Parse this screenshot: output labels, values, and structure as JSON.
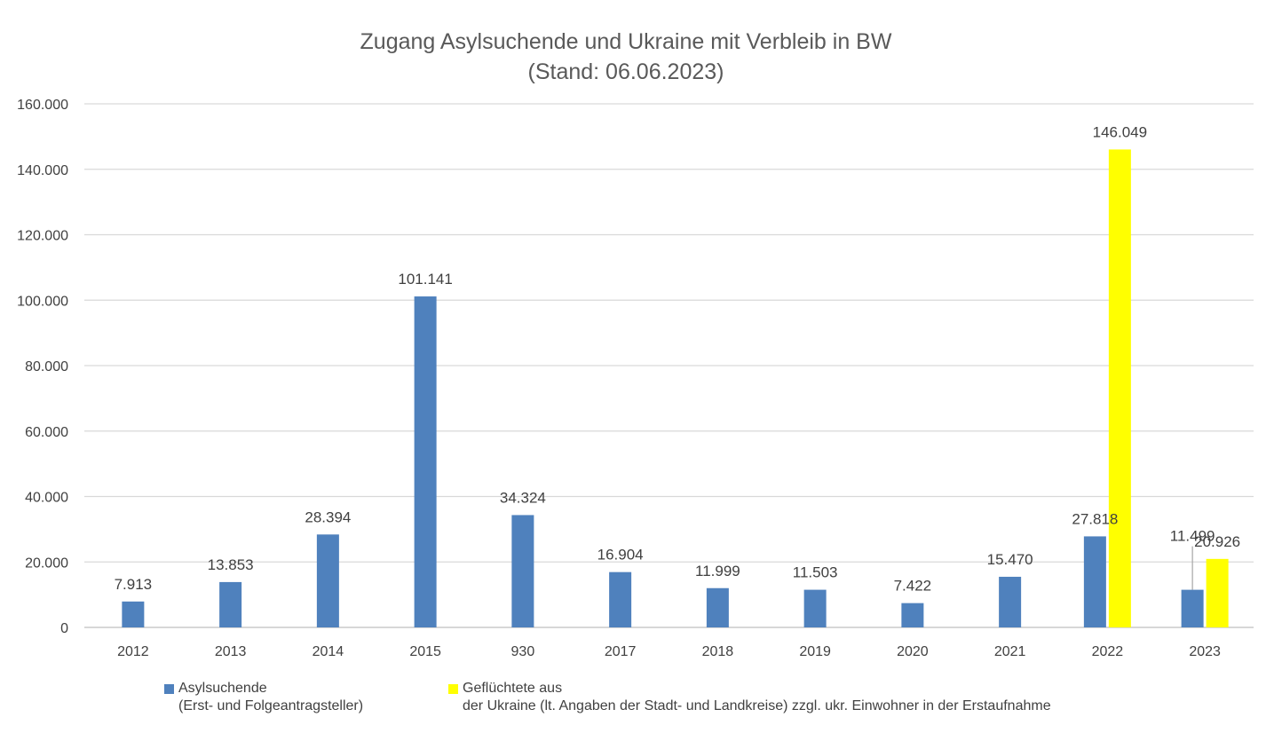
{
  "chart_data": {
    "type": "bar",
    "title_line1": "Zugang Asylsuchende und Ukraine mit Verbleib in BW",
    "title_line2": "(Stand: 06.06.2023)",
    "categories": [
      "2012",
      "2013",
      "2014",
      "2015",
      "930",
      "2017",
      "2018",
      "2019",
      "2020",
      "2021",
      "2022",
      "2023"
    ],
    "series": [
      {
        "name_line1": "Asylsuchende",
        "name_line2": "(Erst- und Folgeantragsteller)",
        "color": "#4f81bd",
        "values": [
          7913,
          13853,
          28394,
          101141,
          34324,
          16904,
          11999,
          11503,
          7422,
          15470,
          27818,
          11499
        ],
        "labels": [
          "7.913",
          "13.853",
          "28.394",
          "101.141",
          "34.324",
          "16.904",
          "11.999",
          "11.503",
          "7.422",
          "15.470",
          "27.818",
          "11.499"
        ]
      },
      {
        "name_line1": "Geflüchtete aus",
        "name_line2": "der Ukraine (lt. Angaben der Stadt- und Landkreise) zzgl. ukr. Einwohner in der Erstaufnahme",
        "color": "#ffff00",
        "values": [
          null,
          null,
          null,
          null,
          null,
          null,
          null,
          null,
          null,
          null,
          146049,
          20926
        ],
        "labels": [
          null,
          null,
          null,
          null,
          null,
          null,
          null,
          null,
          null,
          null,
          "146.049",
          "20.926"
        ]
      }
    ],
    "ylim": [
      0,
      160000
    ],
    "yticks": [
      0,
      20000,
      40000,
      60000,
      80000,
      100000,
      120000,
      140000,
      160000
    ],
    "ytick_labels": [
      "0",
      "20.000",
      "40.000",
      "60.000",
      "80.000",
      "100.000",
      "120.000",
      "140.000",
      "160.000"
    ],
    "grid": true,
    "legend_position": "bottom"
  }
}
